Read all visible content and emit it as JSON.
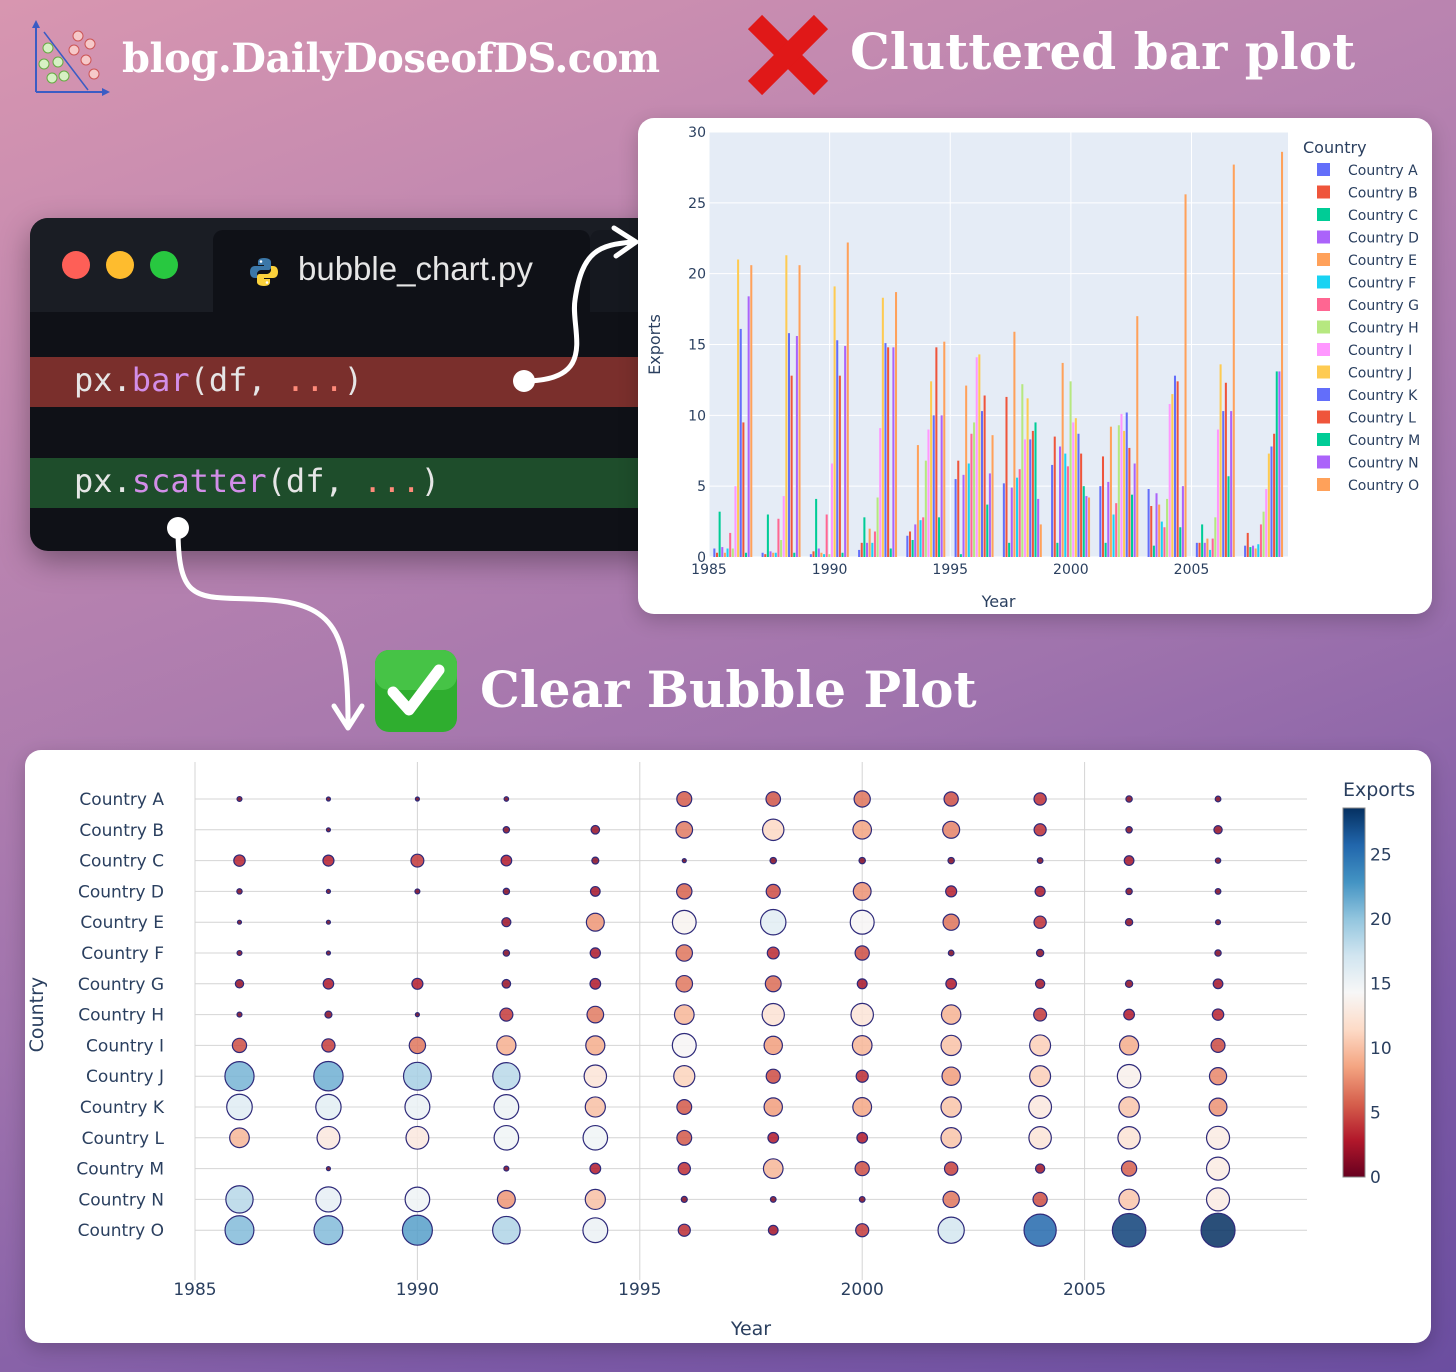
{
  "brand": {
    "site": "blog.DailyDoseofDS.com",
    "logo_icon": "scatter-logo-icon"
  },
  "headings": {
    "bad": "Cluttered bar plot",
    "good": "Clear Bubble Plot",
    "bad_icon": "red-cross-mark-icon",
    "good_icon": "green-check-mark-icon"
  },
  "editor": {
    "window_buttons": [
      "close",
      "minimize",
      "maximize"
    ],
    "file_tab": "bubble_chart.py",
    "file_icon": "python-icon",
    "line_bar": {
      "prefix": "px.",
      "fn": "bar",
      "open": "(df, ",
      "dots": "...",
      "close": ")"
    },
    "line_scatter": {
      "prefix": "px.",
      "fn": "scatter",
      "open": "(df, ",
      "dots": "...",
      "close": ")"
    },
    "bar_line_color": "#7a2f2c",
    "scatter_line_color": "#1e4d2b"
  },
  "countries": [
    "Country A",
    "Country B",
    "Country C",
    "Country D",
    "Country E",
    "Country F",
    "Country G",
    "Country H",
    "Country I",
    "Country J",
    "Country K",
    "Country L",
    "Country M",
    "Country N",
    "Country O"
  ],
  "colors": {
    "plotly": [
      "#636efa",
      "#ef553b",
      "#00cc96",
      "#ab63fa",
      "#ffa15a",
      "#19d3f3",
      "#ff6692",
      "#b6e880",
      "#ff97ff",
      "#fecb52",
      "#636efa",
      "#ef553b",
      "#00cc96",
      "#ab63fa",
      "#ffa15a"
    ],
    "rdbu_scale": [
      "#67001f",
      "#b2182b",
      "#d6604d",
      "#f4a582",
      "#fddbc7",
      "#f7f7f7",
      "#d1e5f0",
      "#92c5de",
      "#4393c3",
      "#2166ac",
      "#053061"
    ],
    "bubble_outline": "#2e2a7a"
  },
  "chart_data": [
    {
      "type": "bar",
      "xlabel": "Year",
      "ylabel": "Exports",
      "legend_title": "Country",
      "legend_position": "right",
      "x": [
        1986,
        1988,
        1990,
        1992,
        1994,
        1996,
        1998,
        2000,
        2002,
        2004,
        2006,
        2008
      ],
      "xlim": [
        1985,
        2009
      ],
      "ylim": [
        0,
        30
      ],
      "x_ticks": [
        1985,
        1990,
        1995,
        2000,
        2005
      ],
      "y_ticks": [
        0,
        5,
        10,
        15,
        20,
        25,
        30
      ],
      "grid": true,
      "series": [
        {
          "name": "Country A",
          "values": [
            0.6,
            0.3,
            0.2,
            0.5,
            1.5,
            5.5,
            5.2,
            6.5,
            5.0,
            4.8,
            1.0,
            0.8
          ]
        },
        {
          "name": "Country B",
          "values": [
            0.3,
            0.2,
            0.4,
            1.0,
            1.8,
            6.8,
            11.3,
            8.5,
            7.1,
            3.6,
            1.0,
            1.7
          ]
        },
        {
          "name": "Country C",
          "values": [
            3.2,
            3.0,
            4.1,
            2.8,
            1.2,
            0.2,
            1.0,
            1.0,
            1.0,
            0.8,
            2.3,
            0.7
          ]
        },
        {
          "name": "Country D",
          "values": [
            0.7,
            0.4,
            0.6,
            1.0,
            2.3,
            5.8,
            4.9,
            7.8,
            5.3,
            4.5,
            1.0,
            0.8
          ]
        },
        {
          "name": "Country E",
          "values": [
            0.3,
            0.3,
            0.3,
            2.0,
            7.9,
            12.1,
            15.9,
            13.7,
            9.2,
            3.7,
            1.3,
            0.6
          ]
        },
        {
          "name": "Country F",
          "values": [
            0.6,
            0.3,
            0.2,
            1.0,
            2.6,
            6.6,
            5.6,
            7.3,
            3.0,
            2.5,
            0.5,
            0.9
          ]
        },
        {
          "name": "Country G",
          "values": [
            1.7,
            2.7,
            3.0,
            1.8,
            2.8,
            8.7,
            6.2,
            6.4,
            3.8,
            2.1,
            1.3,
            2.3
          ]
        },
        {
          "name": "Country H",
          "values": [
            0.6,
            1.2,
            0.2,
            4.2,
            6.8,
            9.5,
            12.2,
            12.4,
            9.3,
            4.1,
            2.8,
            3.2
          ]
        },
        {
          "name": "Country I",
          "values": [
            5.0,
            4.3,
            6.6,
            9.1,
            9.0,
            14.1,
            8.3,
            9.5,
            10.1,
            10.8,
            9.0,
            4.8
          ]
        },
        {
          "name": "Country J",
          "values": [
            21.0,
            21.3,
            19.1,
            18.3,
            12.4,
            14.3,
            11.2,
            9.8,
            8.9,
            11.5,
            13.6,
            7.3
          ]
        },
        {
          "name": "Country K",
          "values": [
            16.1,
            15.8,
            15.3,
            15.1,
            10.0,
            10.3,
            8.3,
            8.7,
            10.2,
            12.8,
            10.3,
            7.8
          ]
        },
        {
          "name": "Country L",
          "values": [
            9.5,
            12.8,
            12.8,
            14.8,
            14.8,
            11.4,
            8.9,
            7.3,
            7.7,
            12.4,
            12.3,
            8.7
          ]
        },
        {
          "name": "Country M",
          "values": [
            0.3,
            0.3,
            0.3,
            0.6,
            2.8,
            3.7,
            9.5,
            5.0,
            4.4,
            2.1,
            5.7,
            13.1
          ]
        },
        {
          "name": "Country N",
          "values": [
            18.4,
            15.6,
            14.9,
            14.8,
            10.0,
            5.9,
            4.1,
            4.3,
            6.6,
            5.0,
            10.3,
            13.1
          ]
        },
        {
          "name": "Country O",
          "values": [
            20.6,
            20.6,
            22.2,
            18.7,
            15.2,
            8.6,
            2.3,
            4.2,
            17.0,
            25.6,
            27.7,
            28.6
          ]
        }
      ]
    },
    {
      "type": "scatter",
      "variant": "bubble",
      "xlabel": "Year",
      "ylabel": "Country",
      "colorbar_title": "Exports",
      "colorscale": "RdBu",
      "color_range": [
        0,
        28.6
      ],
      "colorbar_ticks": [
        0,
        5,
        10,
        15,
        20,
        25
      ],
      "x_ticks": [
        1985,
        1990,
        1995,
        2000,
        2005
      ],
      "xlim": [
        1985,
        2010
      ],
      "grid": true,
      "x": [
        1986,
        1988,
        1990,
        1992,
        1994,
        1996,
        1998,
        2000,
        2002,
        2004,
        2006,
        2008
      ],
      "series": [
        {
          "name": "Country A",
          "values": [
            0.6,
            0.3,
            0.2,
            0.5,
            null,
            5.5,
            5.2,
            6.5,
            5.0,
            3.7,
            1.0,
            0.8
          ]
        },
        {
          "name": "Country B",
          "values": [
            null,
            0.2,
            null,
            1.0,
            1.8,
            6.8,
            11.3,
            8.5,
            7.1,
            3.6,
            1.0,
            1.7
          ]
        },
        {
          "name": "Country C",
          "values": [
            3.2,
            3.0,
            4.1,
            2.8,
            1.2,
            0.2,
            1.0,
            1.0,
            1.0,
            0.8,
            2.3,
            0.7
          ]
        },
        {
          "name": "Country D",
          "values": [
            0.7,
            0.4,
            0.6,
            1.0,
            2.3,
            5.8,
            4.9,
            7.8,
            3.0,
            2.5,
            1.0,
            0.8
          ]
        },
        {
          "name": "Country E",
          "values": [
            0.3,
            0.3,
            null,
            2.0,
            7.9,
            13.9,
            15.9,
            14.1,
            6.5,
            3.7,
            1.3,
            0.6
          ]
        },
        {
          "name": "Country F",
          "values": [
            0.6,
            0.3,
            null,
            1.0,
            2.6,
            6.6,
            3.5,
            5.0,
            0.8,
            1.3,
            null,
            1.0
          ]
        },
        {
          "name": "Country G",
          "values": [
            1.7,
            2.7,
            3.0,
            1.8,
            2.8,
            6.7,
            6.2,
            2.4,
            2.8,
            2.1,
            1.3,
            2.3
          ]
        },
        {
          "name": "Country H",
          "values": [
            0.6,
            1.2,
            0.2,
            4.2,
            6.8,
            9.5,
            12.2,
            12.4,
            9.3,
            4.1,
            2.8,
            3.2
          ]
        },
        {
          "name": "Country I",
          "values": [
            5.0,
            4.3,
            6.6,
            9.1,
            9.0,
            14.1,
            8.3,
            9.5,
            10.1,
            10.8,
            9.0,
            4.8
          ]
        },
        {
          "name": "Country J",
          "values": [
            21.0,
            21.3,
            19.1,
            18.3,
            12.4,
            11.0,
            4.9,
            3.6,
            8.3,
            10.8,
            13.6,
            7.3
          ]
        },
        {
          "name": "Country K",
          "values": [
            16.1,
            15.8,
            15.3,
            15.1,
            10.0,
            5.4,
            8.3,
            8.7,
            10.2,
            12.8,
            10.3,
            7.8
          ]
        },
        {
          "name": "Country L",
          "values": [
            9.5,
            12.8,
            12.8,
            14.8,
            14.8,
            5.4,
            2.8,
            2.8,
            10.2,
            12.4,
            12.3,
            13.1
          ]
        },
        {
          "name": "Country M",
          "values": [
            null,
            0.3,
            null,
            0.6,
            2.8,
            3.7,
            9.5,
            5.0,
            4.4,
            2.1,
            5.7,
            13.1
          ]
        },
        {
          "name": "Country N",
          "values": [
            18.4,
            15.6,
            14.9,
            7.9,
            10.0,
            0.9,
            0.8,
            0.8,
            6.6,
            5.0,
            10.3,
            13.1
          ]
        },
        {
          "name": "Country O",
          "values": [
            20.6,
            20.6,
            22.2,
            18.7,
            15.2,
            3.6,
            2.3,
            4.2,
            17.0,
            25.6,
            27.7,
            28.6
          ]
        }
      ]
    }
  ]
}
